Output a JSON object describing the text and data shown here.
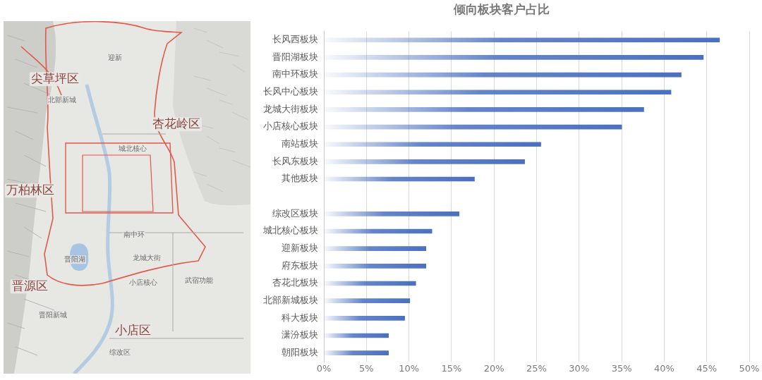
{
  "chart_data": {
    "type": "bar",
    "title": "倾向板块客户占比",
    "orientation": "horizontal",
    "categories": [
      "长风西板块",
      "晋阳湖板块",
      "南中环板块",
      "长风中心板块",
      "龙城大街板块",
      "小店核心板块",
      "南站板块",
      "长风东板块",
      "其他板块",
      null,
      "综改区板块",
      "城北核心板块",
      "迎新板块",
      "府东板块",
      "杏花北板块",
      "北部新城板块",
      "科大板块",
      "潇汾板块",
      "朝阳板块"
    ],
    "values": [
      46.5,
      44.6,
      42.0,
      40.8,
      37.6,
      35.0,
      25.5,
      23.6,
      17.7,
      null,
      15.9,
      12.7,
      12.0,
      12.0,
      10.8,
      10.1,
      9.5,
      7.6,
      7.6
    ],
    "color": "#4a70bf",
    "xlim": [
      0,
      50
    ],
    "xticks": [
      {
        "value": 0,
        "label": "0%"
      },
      {
        "value": 5,
        "label": "5%"
      },
      {
        "value": 10,
        "label": "10%"
      },
      {
        "value": 15,
        "label": "15%"
      },
      {
        "value": 20,
        "label": "20%"
      },
      {
        "value": 25,
        "label": "25%"
      },
      {
        "value": 30,
        "label": "30%"
      },
      {
        "value": 35,
        "label": "35%"
      },
      {
        "value": 40,
        "label": "40%"
      },
      {
        "value": 45,
        "label": "45%"
      },
      {
        "value": 50,
        "label": "50%"
      }
    ],
    "grid": "x",
    "annotations": [
      "尖草坪区",
      "杏花岭区",
      "万柏林区",
      "晋源区",
      "小店区",
      "迎新",
      "北部新城",
      "城北核心",
      "南中环",
      "晋阳湖",
      "龙城大街",
      "小店核心",
      "武宿功能",
      "晋阳新城",
      "综改区"
    ]
  }
}
